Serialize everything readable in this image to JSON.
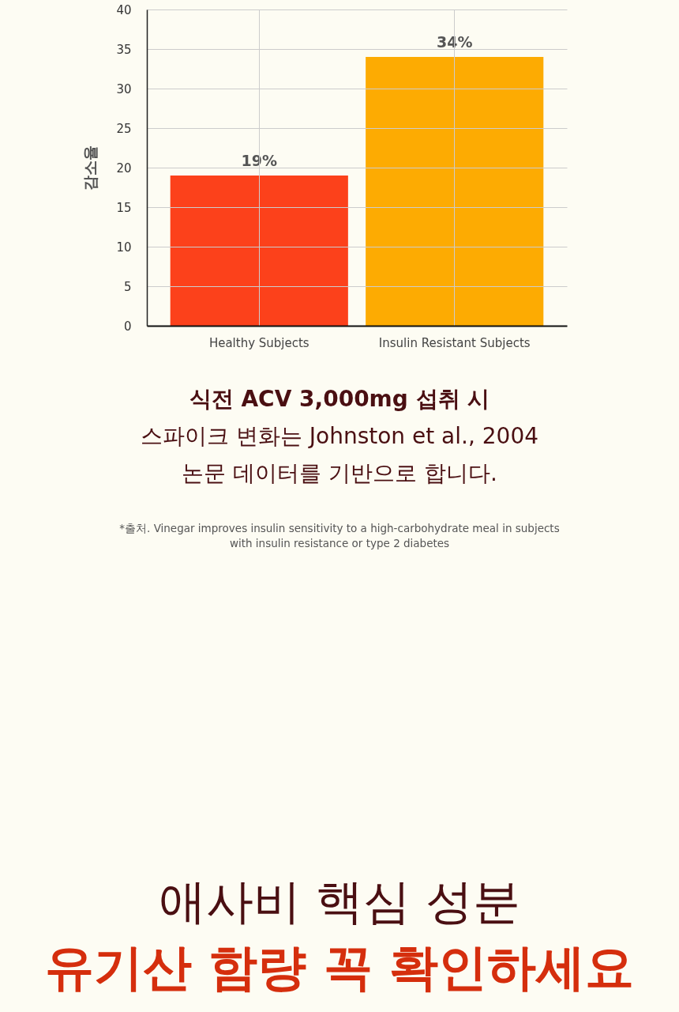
{
  "chart_data": {
    "type": "bar",
    "ylabel": "감소율",
    "categories": [
      "Healthy Subjects",
      "Insulin Resistant Subjects"
    ],
    "values": [
      19,
      34
    ],
    "colors": [
      "#fc411b",
      "#fdab02"
    ],
    "value_labels": [
      "19%",
      "34%"
    ],
    "ylim": [
      0,
      40
    ],
    "yticks": [
      0,
      5,
      10,
      15,
      20,
      25,
      30,
      35,
      40
    ],
    "grid": true,
    "annotations": [
      "식전 ACV 3,000mg 섭취 시\n스파이크 변화는 Johnston et al., 2004\n논문 데이터를 기반으로 합니다.",
      "*출처.  Vinegar improves insulin sensitivity to a high-carbohydrate meal in subjects\nwith insulin resistance or type 2 diabetes",
      "애사비 핵심 성분",
      "유기산 함량 꼭 확인하세요"
    ]
  }
}
